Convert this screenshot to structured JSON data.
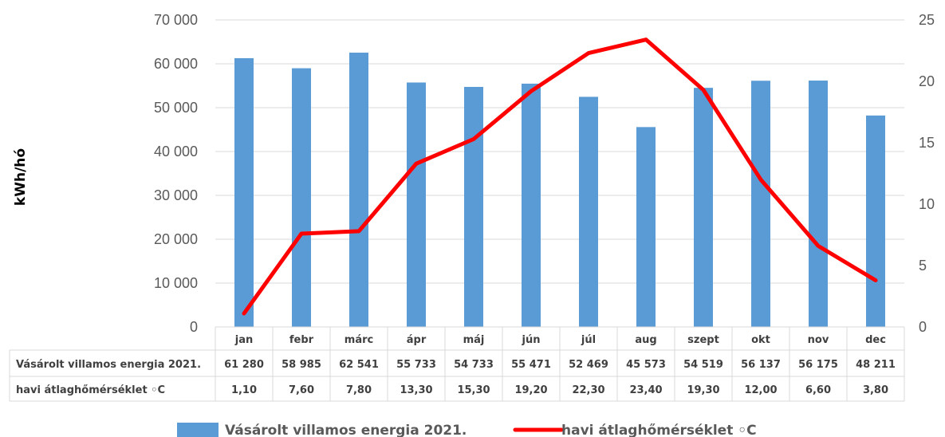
{
  "chart_data": {
    "type": "bar+line",
    "categories": [
      "jan",
      "febr",
      "márc",
      "ápr",
      "máj",
      "jún",
      "júl",
      "aug",
      "szept",
      "okt",
      "nov",
      "dec"
    ],
    "series": [
      {
        "name": "Vásárolt villamos energia 2021.",
        "type": "bar",
        "axis": "left",
        "color": "#5b9bd5",
        "values": [
          61280,
          58985,
          62541,
          55733,
          54733,
          55471,
          52469,
          45573,
          54519,
          56137,
          56175,
          48211
        ],
        "labels": [
          "61 280",
          "58 985",
          "62 541",
          "55 733",
          "54 733",
          "55 471",
          "52 469",
          "45 573",
          "54 519",
          "56 137",
          "56 175",
          "48 211"
        ]
      },
      {
        "name": "havi átlaghőmérséklet ◦C",
        "type": "line",
        "axis": "right",
        "color": "#ff0000",
        "values": [
          1.1,
          7.6,
          7.8,
          13.3,
          15.3,
          19.2,
          22.3,
          23.4,
          19.3,
          12.0,
          6.6,
          3.8
        ],
        "labels": [
          "1,10",
          "7,60",
          "7,80",
          "13,30",
          "15,30",
          "19,20",
          "22,30",
          "23,40",
          "19,30",
          "12,00",
          "6,60",
          "3,80"
        ]
      }
    ],
    "ylabel": "kWh/hó",
    "ylim": [
      0,
      70000
    ],
    "yticks": [
      0,
      10000,
      20000,
      30000,
      40000,
      50000,
      60000,
      70000
    ],
    "ytick_labels": [
      "0",
      "10 000",
      "20 000",
      "30 000",
      "40 000",
      "50 000",
      "60 000",
      "70 000"
    ],
    "y2lim": [
      0,
      25
    ],
    "y2ticks": [
      0,
      5,
      10,
      15,
      20,
      25
    ],
    "y2tick_labels": [
      "0",
      "5",
      "10",
      "15",
      "20",
      "25"
    ],
    "grid": true,
    "data_table": true,
    "legend_position": "bottom"
  }
}
